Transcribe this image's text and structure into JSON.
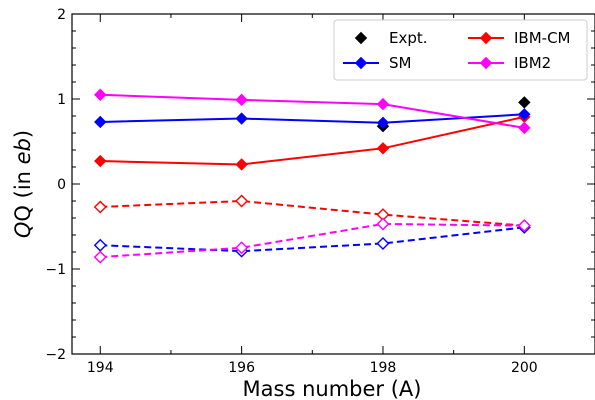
{
  "chart_data": {
    "type": "line",
    "xlabel": "Mass number (A)",
    "ylabel": {
      "main": "Q (in ",
      "italic_part": "eb",
      "close": ")"
    },
    "xlim": [
      193.6,
      201.0
    ],
    "ylim": [
      -2,
      2
    ],
    "x_ticks": [
      194,
      196,
      198,
      200
    ],
    "y_ticks": [
      -2,
      -1,
      0,
      1,
      2
    ],
    "y_tick_labels": [
      "−2",
      "−1",
      "0",
      "1",
      "2"
    ],
    "grid": false,
    "legend_position": "top-right",
    "legend": [
      {
        "name": "Expt.",
        "color": "#000000"
      },
      {
        "name": "IBM-CM",
        "color": "#ff0000"
      },
      {
        "name": "SM",
        "color": "#0000ff"
      },
      {
        "name": "IBM2",
        "color": "#ff00ff"
      }
    ],
    "series": [
      {
        "name": "Expt.",
        "color": "#000000",
        "marker": "diamond-filled",
        "line": "none",
        "x": [
          198,
          200
        ],
        "y": [
          0.68,
          0.96
        ]
      },
      {
        "name": "IBM-CM",
        "color": "#ff0000",
        "marker": "diamond-filled",
        "line": "solid",
        "x": [
          194,
          196,
          198,
          200
        ],
        "y": [
          0.27,
          0.23,
          0.42,
          0.79
        ]
      },
      {
        "name": "SM",
        "color": "#0000ff",
        "marker": "diamond-filled",
        "line": "solid",
        "x": [
          194,
          196,
          198,
          200
        ],
        "y": [
          0.73,
          0.77,
          0.72,
          0.82
        ]
      },
      {
        "name": "IBM2",
        "color": "#ff00ff",
        "marker": "diamond-filled",
        "line": "solid",
        "x": [
          194,
          196,
          198,
          200
        ],
        "y": [
          1.05,
          0.99,
          0.94,
          0.66
        ]
      },
      {
        "name": "IBM-CM",
        "color": "#ff0000",
        "marker": "diamond-open",
        "line": "dashed",
        "x": [
          194,
          196,
          198,
          200
        ],
        "y": [
          -0.27,
          -0.2,
          -0.36,
          -0.49
        ]
      },
      {
        "name": "SM",
        "color": "#0000ff",
        "marker": "diamond-open",
        "line": "dashed",
        "x": [
          194,
          196,
          198,
          200
        ],
        "y": [
          -0.72,
          -0.79,
          -0.7,
          -0.51
        ]
      },
      {
        "name": "IBM2",
        "color": "#ff00ff",
        "marker": "diamond-open",
        "line": "dashed",
        "x": [
          194,
          196,
          198,
          200
        ],
        "y": [
          -0.86,
          -0.75,
          -0.47,
          -0.49
        ]
      }
    ]
  }
}
